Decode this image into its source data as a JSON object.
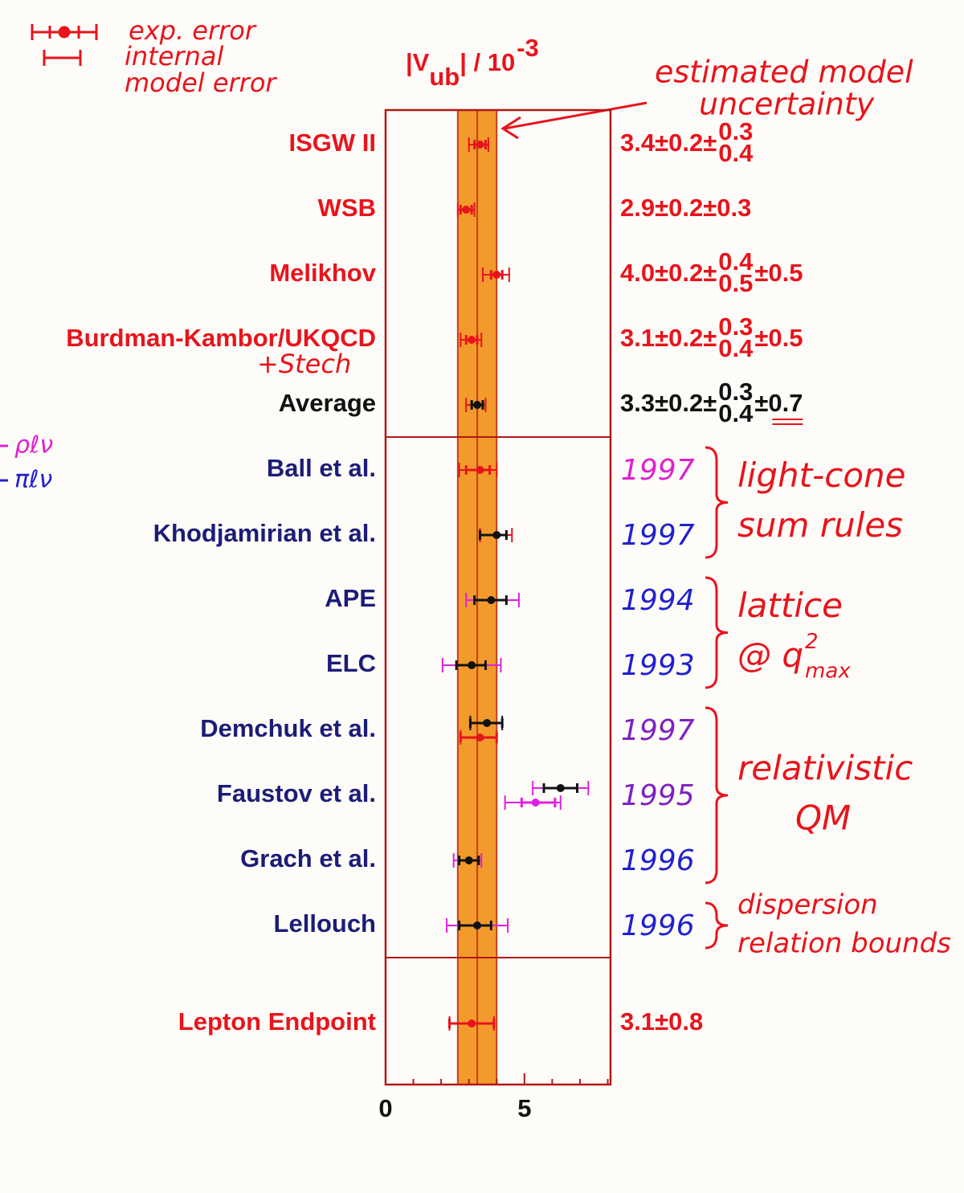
{
  "chart_data": {
    "type": "forest",
    "title": {
      "text": "|V",
      "sub": "ub",
      "tail": "| / 10",
      "sup": "-3"
    },
    "xlim": [
      0,
      8.1
    ],
    "xticks": [
      0,
      5
    ],
    "minor_xticks": [
      1,
      2,
      3,
      4,
      6,
      7,
      8
    ],
    "band": {
      "center": 3.3,
      "half_width": 0.7,
      "color": "#f39a2c"
    },
    "sections": [
      {
        "groups": [
          {
            "rows": [
              {
                "label": "ISGW II",
                "label_color": "#e8141c",
                "result": {
                  "text": "3.4±0.2±",
                  "sup": "0.3",
                  "sub": "0.4"
                },
                "result_color": "#e8141c",
                "points": [
                  {
                    "value": 3.4,
                    "color": "#e8141c",
                    "err_inner": [
                      0.2,
                      0.2
                    ],
                    "err_outer": [
                      0.4,
                      0.3
                    ],
                    "outer_color": "#e8141c"
                  }
                ]
              },
              {
                "label": "WSB",
                "label_color": "#e8141c",
                "result": {
                  "text": "2.9±0.2±0.3"
                },
                "result_color": "#e8141c",
                "points": [
                  {
                    "value": 2.9,
                    "color": "#e8141c",
                    "err_inner": [
                      0.2,
                      0.2
                    ],
                    "err_outer": [
                      0.3,
                      0.3
                    ],
                    "outer_color": "#e8141c"
                  }
                ]
              },
              {
                "label": "Melikhov",
                "label_color": "#e8141c",
                "result": {
                  "text": "4.0±0.2±",
                  "sup": "0.4",
                  "sub": "0.5",
                  "tail": "±0.5"
                },
                "result_color": "#e8141c",
                "points": [
                  {
                    "value": 4.0,
                    "color": "#e8141c",
                    "err_inner": [
                      0.2,
                      0.2
                    ],
                    "err_outer": [
                      0.5,
                      0.45
                    ],
                    "outer_color": "#e8141c"
                  }
                ]
              },
              {
                "label": "Burdman-Kambor/UKQCD",
                "label_color": "#e8141c",
                "result": {
                  "text": "3.1±0.2±",
                  "sup": "0.3",
                  "sub": "0.4",
                  "tail": "±0.5"
                },
                "result_color": "#e8141c",
                "points": [
                  {
                    "value": 3.1,
                    "color": "#e8141c",
                    "err_inner": [
                      0.2,
                      0.2
                    ],
                    "err_outer": [
                      0.4,
                      0.35
                    ],
                    "outer_color": "#e8141c"
                  }
                ]
              },
              {
                "label": "Average",
                "label_color": "#111111",
                "result": {
                  "text": "3.3±0.2±",
                  "sup": "0.3",
                  "sub": "0.4",
                  "tail": "±0.7"
                },
                "result_color": "#111111",
                "points": [
                  {
                    "value": 3.3,
                    "color": "#111111",
                    "err_inner": [
                      0.2,
                      0.2
                    ],
                    "err_outer": [
                      0.4,
                      0.3
                    ],
                    "outer_color": "#e8141c"
                  }
                ]
              }
            ]
          }
        ]
      },
      {
        "groups": [
          {
            "note": [
              "light-cone",
              "sum rules"
            ],
            "rows": [
              {
                "label": "Ball et al.",
                "label_color": "#1c1c78",
                "year": "1997",
                "year_color": "#e020d0",
                "points": [
                  {
                    "value": 3.4,
                    "color": "#e8141c",
                    "err_inner": [
                      0.5,
                      0.35
                    ],
                    "err_outer": [
                      0.75,
                      0.6
                    ],
                    "outer_color": "#e8141c"
                  }
                ]
              },
              {
                "label": "Khodjamirian et al.",
                "label_color": "#1c1c78",
                "year": "1997",
                "year_color": "#2020d0",
                "points": [
                  {
                    "value": 4.0,
                    "color": "#111111",
                    "err_inner": [
                      0.6,
                      0.35
                    ],
                    "err_outer": [
                      0.6,
                      0.55
                    ],
                    "outer_color": "#e8141c"
                  }
                ]
              }
            ]
          },
          {
            "note": [
              "lattice",
              {
                "text": "@ q",
                "sup": "2",
                "sub": "max"
              }
            ],
            "rows": [
              {
                "label": "APE",
                "label_color": "#1c1c78",
                "year": "1994",
                "year_color": "#2020d0",
                "points": [
                  {
                    "value": 3.8,
                    "color": "#111111",
                    "err_inner": [
                      0.6,
                      0.55
                    ],
                    "err_outer": [
                      0.9,
                      1.0
                    ],
                    "outer_color": "#e020e0"
                  }
                ]
              },
              {
                "label": "ELC",
                "label_color": "#1c1c78",
                "year": "1993",
                "year_color": "#2020d0",
                "points": [
                  {
                    "value": 3.1,
                    "color": "#111111",
                    "err_inner": [
                      0.55,
                      0.5
                    ],
                    "err_outer": [
                      1.05,
                      1.05
                    ],
                    "outer_color": "#e020e0"
                  }
                ]
              }
            ]
          },
          {
            "note": [
              "relativistic",
              "QM"
            ],
            "rows": [
              {
                "label": "Demchuk et al.",
                "label_color": "#1c1c78",
                "year": "1997",
                "year_color": "#8020c0",
                "points": [
                  {
                    "value": 3.65,
                    "color": "#111111",
                    "err_inner": [
                      0.6,
                      0.55
                    ],
                    "err_outer": [
                      0.6,
                      0.55
                    ],
                    "outer_color": "#111111"
                  },
                  {
                    "value": 3.4,
                    "color": "#e8141c",
                    "err_inner": [
                      0.7,
                      0.6
                    ],
                    "err_outer": [
                      0.7,
                      0.6
                    ],
                    "outer_color": "#e8141c"
                  }
                ]
              },
              {
                "label": "Faustov et al.",
                "label_color": "#1c1c78",
                "year": "1995",
                "year_color": "#8020c0",
                "points": [
                  {
                    "value": 6.3,
                    "color": "#111111",
                    "err_inner": [
                      0.6,
                      0.6
                    ],
                    "err_outer": [
                      1.0,
                      1.0
                    ],
                    "outer_color": "#e020e0"
                  },
                  {
                    "value": 5.4,
                    "color": "#e020e0",
                    "err_inner": [
                      0.5,
                      0.7
                    ],
                    "err_outer": [
                      1.1,
                      0.9
                    ],
                    "outer_color": "#e020e0"
                  }
                ]
              },
              {
                "label": "Grach et al.",
                "label_color": "#1c1c78",
                "year": "1996",
                "year_color": "#2020d0",
                "points": [
                  {
                    "value": 3.0,
                    "color": "#111111",
                    "err_inner": [
                      0.35,
                      0.35
                    ],
                    "err_outer": [
                      0.55,
                      0.45
                    ],
                    "outer_color": "#e020e0"
                  }
                ]
              }
            ]
          },
          {
            "note": [
              "dispersion",
              "relation bounds"
            ],
            "rows": [
              {
                "label": "Lellouch",
                "label_color": "#1c1c78",
                "year": "1996",
                "year_color": "#2020d0",
                "points": [
                  {
                    "value": 3.3,
                    "color": "#111111",
                    "err_inner": [
                      0.65,
                      0.5
                    ],
                    "err_outer": [
                      1.1,
                      1.1
                    ],
                    "outer_color": "#e020e0"
                  }
                ]
              }
            ]
          }
        ]
      },
      {
        "groups": [
          {
            "rows": [
              {
                "label": "Lepton Endpoint",
                "label_color": "#e8141c",
                "result": {
                  "text": "3.1±0.8"
                },
                "result_color": "#e8141c",
                "points": [
                  {
                    "value": 3.1,
                    "color": "#e8141c",
                    "err_inner": [
                      0.8,
                      0.8
                    ],
                    "err_outer": [
                      0.8,
                      0.8
                    ],
                    "outer_color": "#e8141c"
                  }
                ]
              }
            ]
          }
        ]
      }
    ],
    "annotations": {
      "legend_exp": "exp. error",
      "legend_model": [
        "internal",
        "model error"
      ],
      "model_uncertainty": [
        "estimated model",
        "uncertainty"
      ],
      "stech": "+Stech",
      "decays": [
        "ρℓν",
        "πℓν"
      ]
    }
  }
}
